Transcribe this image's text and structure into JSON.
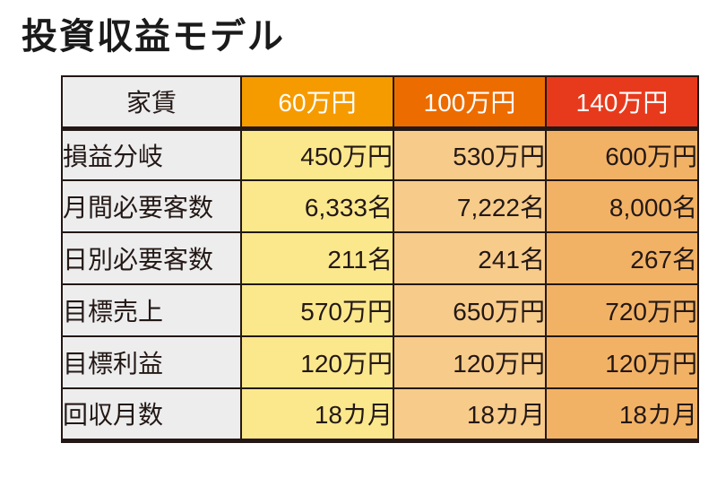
{
  "title": "投資収益モデル",
  "table": {
    "header": {
      "label": "家賃",
      "columns": [
        {
          "label": "60万円",
          "bg": "#f59b00"
        },
        {
          "label": "100万円",
          "bg": "#ec6c00"
        },
        {
          "label": "140万円",
          "bg": "#e73a1d"
        }
      ]
    },
    "rows": [
      {
        "label": "損益分岐",
        "values": [
          "450万円",
          "530万円",
          "600万円"
        ]
      },
      {
        "label": "月間必要客数",
        "values": [
          "6,333名",
          "7,222名",
          "8,000名"
        ]
      },
      {
        "label": "日別必要客数",
        "values": [
          "211名",
          "241名",
          "267名"
        ]
      },
      {
        "label": "目標売上",
        "values": [
          "570万円",
          "650万円",
          "720万円"
        ]
      },
      {
        "label": "目標利益",
        "values": [
          "120万円",
          "120万円",
          "120万円"
        ]
      },
      {
        "label": "回収月数",
        "values": [
          "18カ月",
          "18カ月",
          "18カ月"
        ]
      }
    ],
    "colors": {
      "header_label_bg": "#ededee",
      "row_label_bg": "#ededee",
      "column_bgs": [
        "#fbe88d",
        "#f7cb8a",
        "#f2b266"
      ],
      "header_text": "#ffffff",
      "body_text": "#231815",
      "border": "#231815"
    }
  },
  "chart_data": {
    "type": "table",
    "title": "投資収益モデル",
    "columns": [
      "家賃",
      "60万円",
      "100万円",
      "140万円"
    ],
    "rows": [
      [
        "損益分岐",
        "450万円",
        "530万円",
        "600万円"
      ],
      [
        "月間必要客数",
        "6,333名",
        "7,222名",
        "8,000名"
      ],
      [
        "日別必要客数",
        "211名",
        "241名",
        "267名"
      ],
      [
        "目標売上",
        "570万円",
        "650万円",
        "720万円"
      ],
      [
        "目標利益",
        "120万円",
        "120万円",
        "120万円"
      ],
      [
        "回収月数",
        "18カ月",
        "18カ月",
        "18カ月"
      ]
    ],
    "legend_position": "none",
    "grid": true
  }
}
